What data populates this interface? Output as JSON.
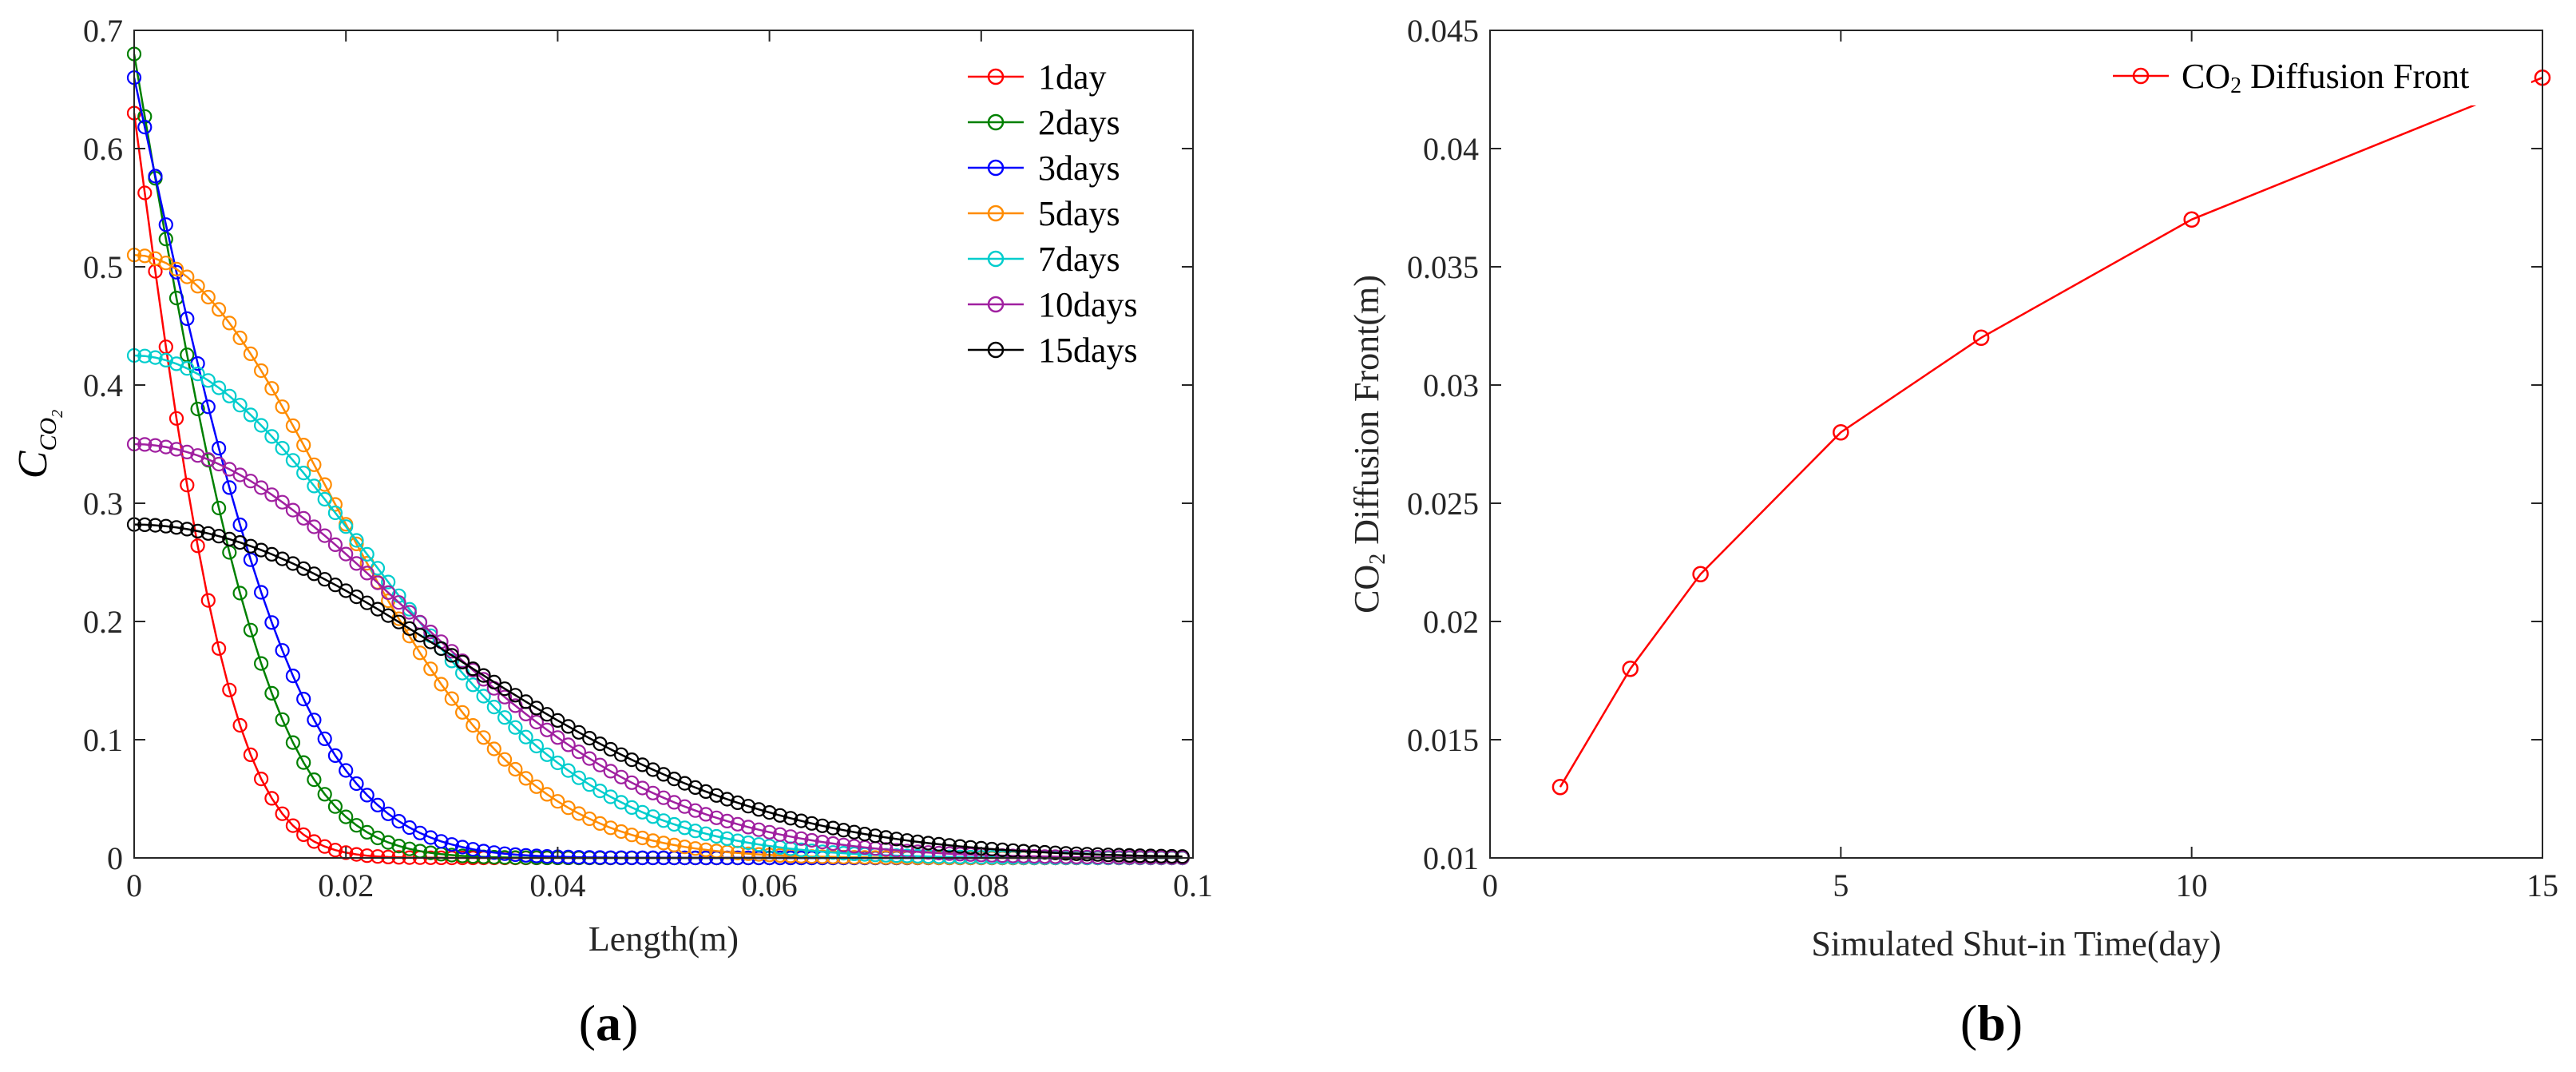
{
  "panels": [
    {
      "label": "(a)",
      "label_parts": {
        "open": "(",
        "letter": "a",
        "close": ")"
      },
      "chart_data": {
        "type": "line",
        "xlabel": "Length(m)",
        "ylabel": {
          "main": "C",
          "sub": "CO",
          "subsub": "2"
        },
        "xlim": [
          0,
          0.1
        ],
        "ylim": [
          0,
          0.7
        ],
        "xticks": [
          0,
          0.02,
          0.04,
          0.06,
          0.08,
          0.1
        ],
        "xtick_labels": [
          "0",
          "0.02",
          "0.04",
          "0.06",
          "0.08",
          "0.1"
        ],
        "yticks": [
          0,
          0.1,
          0.2,
          0.3,
          0.4,
          0.5,
          0.6,
          0.7
        ],
        "ytick_labels": [
          "0",
          "0.1",
          "0.2",
          "0.3",
          "0.4",
          "0.5",
          "0.6",
          "0.7"
        ],
        "grid": false,
        "legend_position": "top-right",
        "marker": "open-circle",
        "x_sample_spacing": 0.001,
        "x_sample_max": 0.099,
        "series": [
          {
            "name": "1day",
            "color": "#ff0000",
            "c0": 0.63,
            "profile": "erfc",
            "scale": 0.0105
          },
          {
            "name": "2days",
            "color": "#008000",
            "c0": 0.68,
            "profile": "erfc",
            "scale": 0.0145
          },
          {
            "name": "3days",
            "color": "#0000ff",
            "c0": 0.66,
            "profile": "erfc",
            "scale": 0.0178
          },
          {
            "name": "5days",
            "color": "#ff8c00",
            "c0": 0.51,
            "profile": "gauss",
            "scale": 0.026
          },
          {
            "name": "7days",
            "color": "#00cdcd",
            "c0": 0.425,
            "profile": "gauss",
            "scale": 0.031
          },
          {
            "name": "10days",
            "color": "#a020a0",
            "c0": 0.35,
            "profile": "gauss",
            "scale": 0.036
          },
          {
            "name": "15days",
            "color": "#000000",
            "c0": 0.282,
            "profile": "gauss",
            "scale": 0.0425
          }
        ]
      }
    },
    {
      "label": "(b)",
      "label_parts": {
        "open": "(",
        "letter": "b",
        "close": ")"
      },
      "chart_data": {
        "type": "line",
        "xlabel": "Simulated Shut-in Time(day)",
        "ylabel": {
          "prefix": "CO",
          "sub": "2",
          "suffix": " Diffusion Front(m)"
        },
        "xlim": [
          0,
          15
        ],
        "ylim": [
          0.01,
          0.045
        ],
        "xticks": [
          0,
          5,
          10,
          15
        ],
        "xtick_labels": [
          "0",
          "5",
          "10",
          "15"
        ],
        "yticks": [
          0.01,
          0.015,
          0.02,
          0.025,
          0.03,
          0.035,
          0.04,
          0.045
        ],
        "ytick_labels": [
          "0.01",
          "0.015",
          "0.02",
          "0.025",
          "0.03",
          "0.035",
          "0.04",
          "0.045"
        ],
        "grid": false,
        "legend_position": "top-right",
        "marker": "open-circle",
        "series": [
          {
            "name": {
              "prefix": "CO",
              "sub": "2",
              "suffix": " Diffusion Front"
            },
            "color": "#ff0000",
            "x": [
              1,
              2,
              3,
              5,
              7,
              10,
              15
            ],
            "y": [
              0.013,
              0.018,
              0.022,
              0.028,
              0.032,
              0.037,
              0.043
            ]
          }
        ]
      }
    }
  ]
}
